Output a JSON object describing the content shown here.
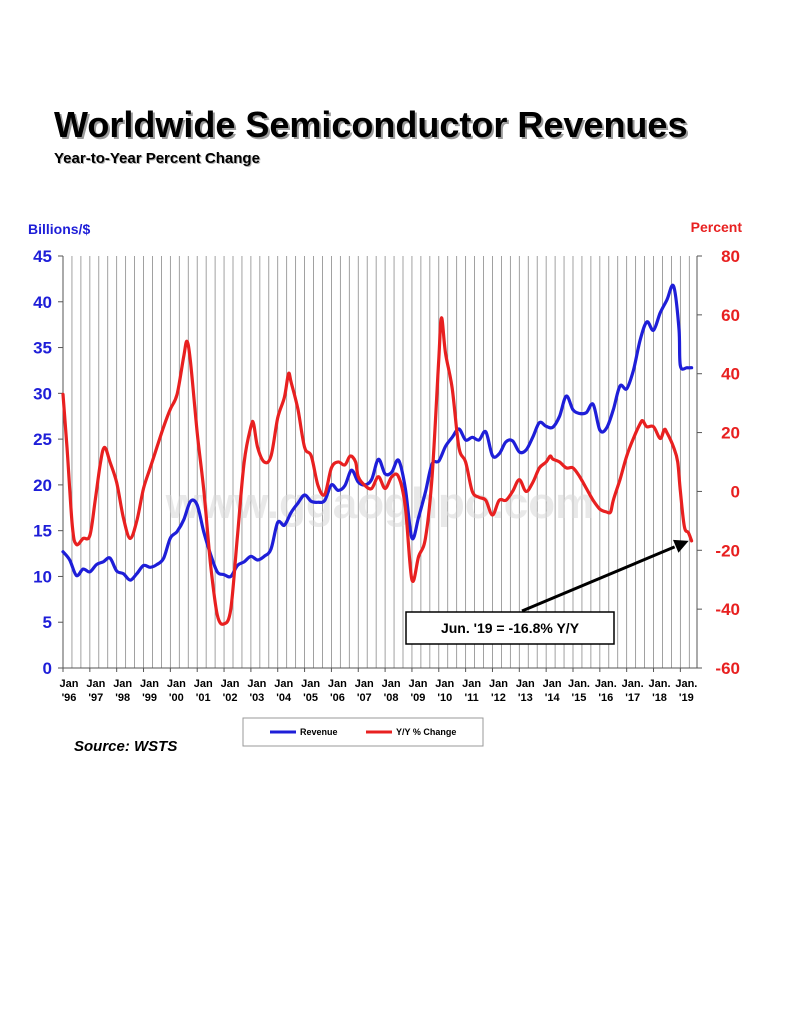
{
  "header": {
    "title": "Worldwide Semiconductor Revenues",
    "subtitle": "Year-to-Year Percent Change"
  },
  "footer": {
    "source": "Source: WSTS"
  },
  "colors": {
    "revenue": "#1e1ed8",
    "yoy": "#e82020",
    "grid": "#8a8a8a"
  },
  "chart_data": {
    "type": "line",
    "title": "Worldwide Semiconductor Revenues",
    "subtitle": "Year-to-Year Percent Change",
    "ylabel_left": "Billions/$",
    "ylabel_right": "Percent",
    "ylim_left": [
      0,
      45
    ],
    "ylim_right": [
      -60,
      80
    ],
    "yticks_left": [
      "0",
      "5",
      "10",
      "15",
      "20",
      "25",
      "30",
      "35",
      "40",
      "45"
    ],
    "yticks_right": [
      "-60",
      "-40",
      "-20",
      "0",
      "20",
      "40",
      "60",
      "80"
    ],
    "x_tick_labels": [
      [
        "Jan",
        "'96"
      ],
      [
        "Jan",
        "'97"
      ],
      [
        "Jan",
        "'98"
      ],
      [
        "Jan",
        "'99"
      ],
      [
        "Jan",
        "'00"
      ],
      [
        "Jan",
        "'01"
      ],
      [
        "Jan",
        "'02"
      ],
      [
        "Jan",
        "'03"
      ],
      [
        "Jan",
        "'04"
      ],
      [
        "Jan",
        "'05"
      ],
      [
        "Jan",
        "'06"
      ],
      [
        "Jan",
        "'07"
      ],
      [
        "Jan",
        "'08"
      ],
      [
        "Jan",
        "'09"
      ],
      [
        "Jan",
        "'10"
      ],
      [
        "Jan",
        "'11"
      ],
      [
        "Jan",
        "'12"
      ],
      [
        "Jan",
        "'13"
      ],
      [
        "Jan",
        "'14"
      ],
      [
        "Jan.",
        "'15"
      ],
      [
        "Jan.",
        "'16"
      ],
      [
        "Jan.",
        "'17"
      ],
      [
        "Jan.",
        "'18"
      ],
      [
        "Jan.",
        "'19"
      ]
    ],
    "grid": "vertical-monthly",
    "legend_position": "bottom-center",
    "series": [
      {
        "name": "Revenue",
        "axis": "left",
        "points": [
          [
            1996.0,
            12.7
          ],
          [
            1996.25,
            11.8
          ],
          [
            1996.5,
            10.1
          ],
          [
            1996.75,
            10.8
          ],
          [
            1997.0,
            10.5
          ],
          [
            1997.25,
            11.3
          ],
          [
            1997.5,
            11.6
          ],
          [
            1997.75,
            12.0
          ],
          [
            1998.0,
            10.6
          ],
          [
            1998.25,
            10.3
          ],
          [
            1998.5,
            9.6
          ],
          [
            1998.75,
            10.3
          ],
          [
            1999.0,
            11.2
          ],
          [
            1999.25,
            11.0
          ],
          [
            1999.5,
            11.3
          ],
          [
            1999.75,
            12.0
          ],
          [
            2000.0,
            14.2
          ],
          [
            2000.25,
            14.9
          ],
          [
            2000.5,
            16.2
          ],
          [
            2000.75,
            18.2
          ],
          [
            2001.0,
            17.8
          ],
          [
            2001.25,
            14.8
          ],
          [
            2001.5,
            12.4
          ],
          [
            2001.75,
            10.5
          ],
          [
            2002.0,
            10.2
          ],
          [
            2002.25,
            10.0
          ],
          [
            2002.5,
            11.2
          ],
          [
            2002.75,
            11.6
          ],
          [
            2003.0,
            12.2
          ],
          [
            2003.25,
            11.8
          ],
          [
            2003.5,
            12.2
          ],
          [
            2003.75,
            13.0
          ],
          [
            2004.0,
            15.9
          ],
          [
            2004.25,
            15.6
          ],
          [
            2004.5,
            17.0
          ],
          [
            2004.75,
            18.0
          ],
          [
            2005.0,
            18.9
          ],
          [
            2005.25,
            18.2
          ],
          [
            2005.5,
            18.1
          ],
          [
            2005.75,
            18.3
          ],
          [
            2006.0,
            20.0
          ],
          [
            2006.25,
            19.4
          ],
          [
            2006.5,
            19.9
          ],
          [
            2006.75,
            21.6
          ],
          [
            2007.0,
            20.3
          ],
          [
            2007.25,
            20.0
          ],
          [
            2007.5,
            20.6
          ],
          [
            2007.75,
            22.8
          ],
          [
            2008.0,
            21.2
          ],
          [
            2008.25,
            21.4
          ],
          [
            2008.5,
            22.7
          ],
          [
            2008.75,
            19.7
          ],
          [
            2009.0,
            14.2
          ],
          [
            2009.25,
            16.5
          ],
          [
            2009.5,
            19.2
          ],
          [
            2009.75,
            22.3
          ],
          [
            2010.0,
            22.6
          ],
          [
            2010.25,
            24.2
          ],
          [
            2010.5,
            25.2
          ],
          [
            2010.75,
            26.1
          ],
          [
            2011.0,
            24.9
          ],
          [
            2011.25,
            25.2
          ],
          [
            2011.5,
            24.9
          ],
          [
            2011.75,
            25.8
          ],
          [
            2012.0,
            23.2
          ],
          [
            2012.25,
            23.4
          ],
          [
            2012.5,
            24.7
          ],
          [
            2012.75,
            24.8
          ],
          [
            2013.0,
            23.6
          ],
          [
            2013.25,
            23.8
          ],
          [
            2013.5,
            25.2
          ],
          [
            2013.75,
            26.8
          ],
          [
            2014.0,
            26.4
          ],
          [
            2014.25,
            26.3
          ],
          [
            2014.5,
            27.5
          ],
          [
            2014.75,
            29.7
          ],
          [
            2015.0,
            28.2
          ],
          [
            2015.25,
            27.8
          ],
          [
            2015.5,
            27.9
          ],
          [
            2015.75,
            28.8
          ],
          [
            2016.0,
            26.0
          ],
          [
            2016.25,
            26.2
          ],
          [
            2016.5,
            28.2
          ],
          [
            2016.75,
            30.8
          ],
          [
            2017.0,
            30.5
          ],
          [
            2017.25,
            32.5
          ],
          [
            2017.5,
            35.8
          ],
          [
            2017.75,
            37.8
          ],
          [
            2018.0,
            36.9
          ],
          [
            2018.25,
            38.8
          ],
          [
            2018.5,
            40.2
          ],
          [
            2018.75,
            41.7
          ],
          [
            2018.95,
            37.0
          ],
          [
            2019.0,
            33.0
          ],
          [
            2019.25,
            32.8
          ],
          [
            2019.42,
            32.8
          ]
        ]
      },
      {
        "name": "Y/Y % Change",
        "axis": "right",
        "points": [
          [
            1996.0,
            33
          ],
          [
            1996.15,
            15
          ],
          [
            1996.35,
            -12
          ],
          [
            1996.5,
            -18
          ],
          [
            1996.75,
            -16
          ],
          [
            1997.0,
            -15
          ],
          [
            1997.2,
            -3
          ],
          [
            1997.4,
            10
          ],
          [
            1997.55,
            15
          ],
          [
            1997.75,
            10
          ],
          [
            1998.0,
            3
          ],
          [
            1998.25,
            -9
          ],
          [
            1998.5,
            -16
          ],
          [
            1998.75,
            -10
          ],
          [
            1999.0,
            1
          ],
          [
            1999.25,
            8
          ],
          [
            1999.5,
            15
          ],
          [
            1999.75,
            22
          ],
          [
            2000.0,
            28
          ],
          [
            2000.25,
            33
          ],
          [
            2000.5,
            46
          ],
          [
            2000.62,
            51
          ],
          [
            2000.75,
            44
          ],
          [
            2001.0,
            20
          ],
          [
            2001.25,
            0
          ],
          [
            2001.5,
            -25
          ],
          [
            2001.75,
            -42
          ],
          [
            2002.0,
            -45
          ],
          [
            2002.25,
            -40
          ],
          [
            2002.5,
            -15
          ],
          [
            2002.75,
            10
          ],
          [
            2003.0,
            22
          ],
          [
            2003.1,
            23
          ],
          [
            2003.25,
            15
          ],
          [
            2003.5,
            10
          ],
          [
            2003.75,
            12
          ],
          [
            2004.0,
            25
          ],
          [
            2004.25,
            32
          ],
          [
            2004.4,
            40
          ],
          [
            2004.5,
            37
          ],
          [
            2004.75,
            28
          ],
          [
            2005.0,
            15
          ],
          [
            2005.25,
            12
          ],
          [
            2005.5,
            2
          ],
          [
            2005.75,
            -1
          ],
          [
            2006.0,
            8
          ],
          [
            2006.25,
            10
          ],
          [
            2006.5,
            9
          ],
          [
            2006.7,
            12
          ],
          [
            2006.9,
            10
          ],
          [
            2007.0,
            5
          ],
          [
            2007.25,
            2
          ],
          [
            2007.5,
            1
          ],
          [
            2007.75,
            5
          ],
          [
            2008.0,
            1
          ],
          [
            2008.25,
            5
          ],
          [
            2008.5,
            5
          ],
          [
            2008.75,
            -5
          ],
          [
            2009.0,
            -30
          ],
          [
            2009.25,
            -22
          ],
          [
            2009.5,
            -16
          ],
          [
            2009.75,
            5
          ],
          [
            2010.0,
            45
          ],
          [
            2010.1,
            59
          ],
          [
            2010.25,
            47
          ],
          [
            2010.5,
            35
          ],
          [
            2010.75,
            15
          ],
          [
            2011.0,
            10
          ],
          [
            2011.25,
            0
          ],
          [
            2011.5,
            -2
          ],
          [
            2011.75,
            -3
          ],
          [
            2012.0,
            -8
          ],
          [
            2012.25,
            -3
          ],
          [
            2012.5,
            -3
          ],
          [
            2012.75,
            0
          ],
          [
            2013.0,
            4
          ],
          [
            2013.25,
            0
          ],
          [
            2013.5,
            3
          ],
          [
            2013.75,
            8
          ],
          [
            2014.0,
            10
          ],
          [
            2014.15,
            12
          ],
          [
            2014.25,
            11
          ],
          [
            2014.5,
            10
          ],
          [
            2014.75,
            8
          ],
          [
            2015.0,
            8
          ],
          [
            2015.25,
            5
          ],
          [
            2015.5,
            1
          ],
          [
            2015.75,
            -3
          ],
          [
            2016.0,
            -6
          ],
          [
            2016.25,
            -7
          ],
          [
            2016.4,
            -7
          ],
          [
            2016.5,
            -3
          ],
          [
            2016.75,
            4
          ],
          [
            2017.0,
            12
          ],
          [
            2017.25,
            18
          ],
          [
            2017.5,
            23
          ],
          [
            2017.6,
            24
          ],
          [
            2017.75,
            22
          ],
          [
            2018.0,
            22
          ],
          [
            2018.25,
            18
          ],
          [
            2018.4,
            21
          ],
          [
            2018.5,
            20
          ],
          [
            2018.75,
            15
          ],
          [
            2018.9,
            10
          ],
          [
            2019.0,
            0
          ],
          [
            2019.15,
            -12
          ],
          [
            2019.3,
            -14
          ],
          [
            2019.42,
            -16.8
          ]
        ]
      }
    ],
    "annotation": {
      "text": "Jun. '19 = -16.8% Y/Y",
      "x": 2019.42,
      "y_right": -16.8
    }
  },
  "watermark": "www.ggaoghpo.com"
}
